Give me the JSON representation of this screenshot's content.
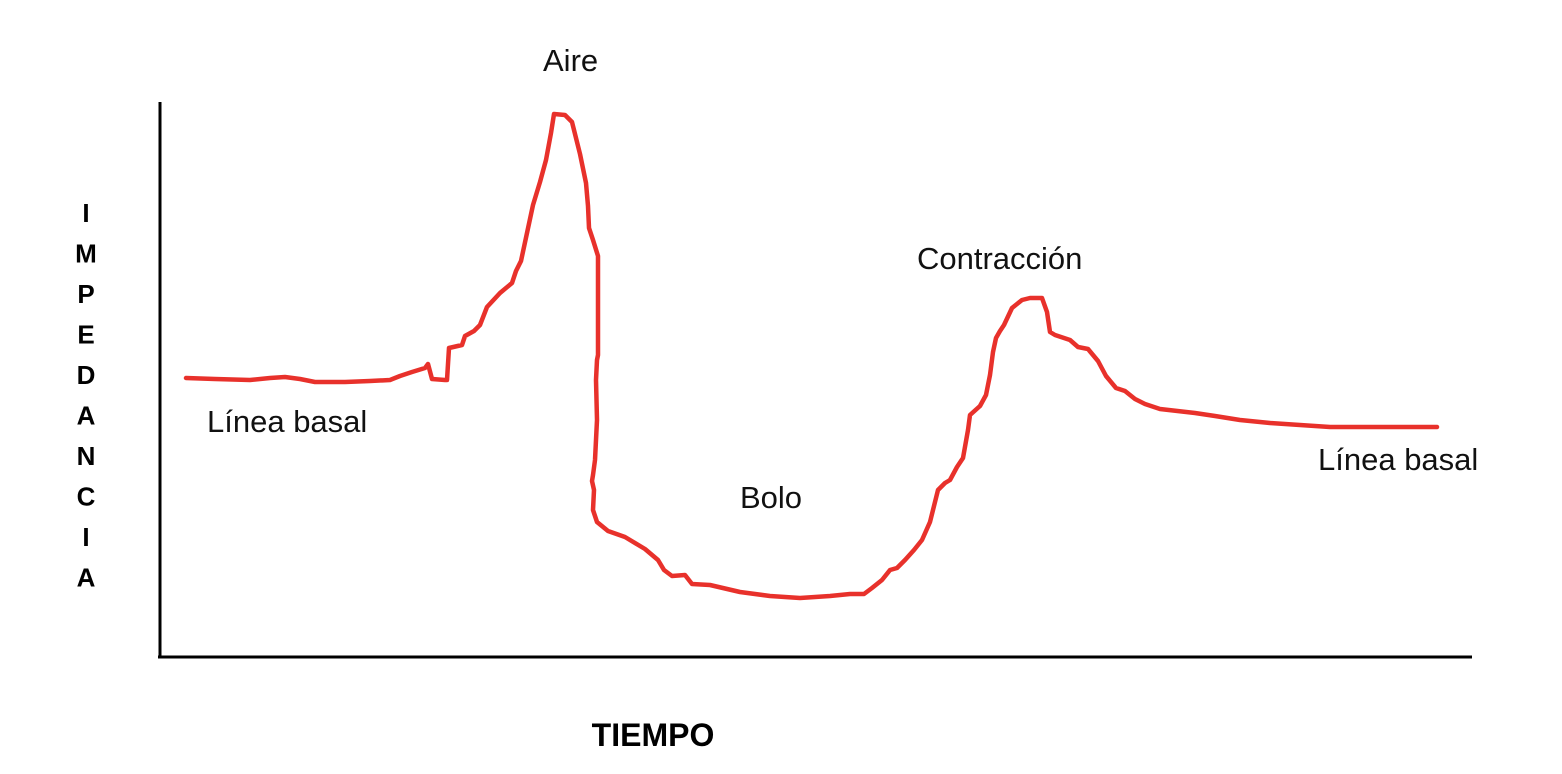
{
  "diagram": {
    "x_axis_label": "TIEMPO",
    "y_axis_label": "IMPEDANCIA",
    "annotations": {
      "baseline_left": "Línea basal",
      "air": "Aire",
      "bolus": "Bolo",
      "contraction": "Contracción",
      "baseline_right": "Línea basal"
    },
    "colors": {
      "curve": "#e8312b",
      "axes": "#000000",
      "text": "#111111",
      "background": "#ffffff"
    }
  }
}
